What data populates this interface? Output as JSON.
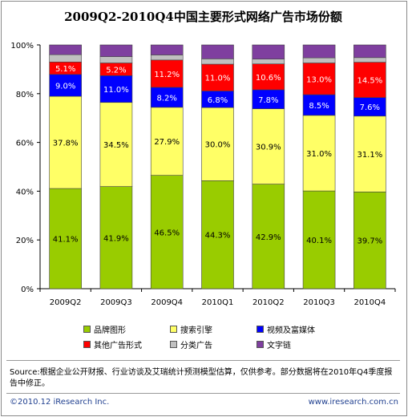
{
  "chart_data": {
    "type": "bar",
    "stacked": true,
    "title": "2009Q2-2010Q4中国主要形式网络广告市场份额",
    "categories": [
      "2009Q2",
      "2009Q3",
      "2009Q4",
      "2010Q1",
      "2010Q2",
      "2010Q3",
      "2010Q4"
    ],
    "y_ticks": [
      "0%",
      "20%",
      "40%",
      "60%",
      "80%",
      "100%"
    ],
    "ylim": [
      0,
      100
    ],
    "grid": false,
    "legend_position": "bottom",
    "series": [
      {
        "name": "品牌图形",
        "color": "#99cc00",
        "values": [
          41.1,
          41.9,
          46.5,
          44.3,
          42.9,
          40.1,
          39.7
        ],
        "labels": [
          "41.1%",
          "41.9%",
          "46.5%",
          "44.3%",
          "42.9%",
          "40.1%",
          "39.7%"
        ],
        "label_color": "#000000"
      },
      {
        "name": "搜索引擎",
        "color": "#ffff66",
        "values": [
          37.8,
          34.5,
          27.9,
          30.0,
          30.9,
          31.0,
          31.1
        ],
        "labels": [
          "37.8%",
          "34.5%",
          "27.9%",
          "30.0%",
          "30.9%",
          "31.0%",
          "31.1%"
        ],
        "label_color": "#000000"
      },
      {
        "name": "视频及富媒体",
        "color": "#0000ff",
        "values": [
          9.0,
          11.0,
          8.2,
          6.8,
          7.8,
          8.5,
          7.6
        ],
        "labels": [
          "9.0%",
          "11.0%",
          "8.2%",
          "6.8%",
          "7.8%",
          "8.5%",
          "7.6%"
        ],
        "label_color": "#ffffff"
      },
      {
        "name": "其他广告形式",
        "color": "#ff0000",
        "values": [
          5.1,
          5.2,
          11.2,
          11.0,
          10.6,
          13.0,
          14.5
        ],
        "labels": [
          "5.1%",
          "5.2%",
          "11.2%",
          "11.0%",
          "10.6%",
          "13.0%",
          "14.5%"
        ],
        "label_color": "#ffffff"
      },
      {
        "name": "分类广告",
        "color": "#c0c0c0",
        "values": [
          3.0,
          2.6,
          2.1,
          2.2,
          2.0,
          2.1,
          1.9
        ],
        "labels": [],
        "label_color": "#000000"
      },
      {
        "name": "文字链",
        "color": "#7f3f9f",
        "values": [
          4.0,
          4.8,
          4.1,
          5.7,
          5.8,
          5.3,
          5.2
        ],
        "labels": [],
        "label_color": "#000000"
      }
    ]
  },
  "source_text": "Source:根据企业公开财报、行业访谈及艾瑞统计预测模型估算，仅供参考。部分数据将在2010年Q4季度报告中修正。",
  "copyright_text": "©2010.12 iResearch Inc.",
  "website_text": "www.iresearch.com.cn"
}
